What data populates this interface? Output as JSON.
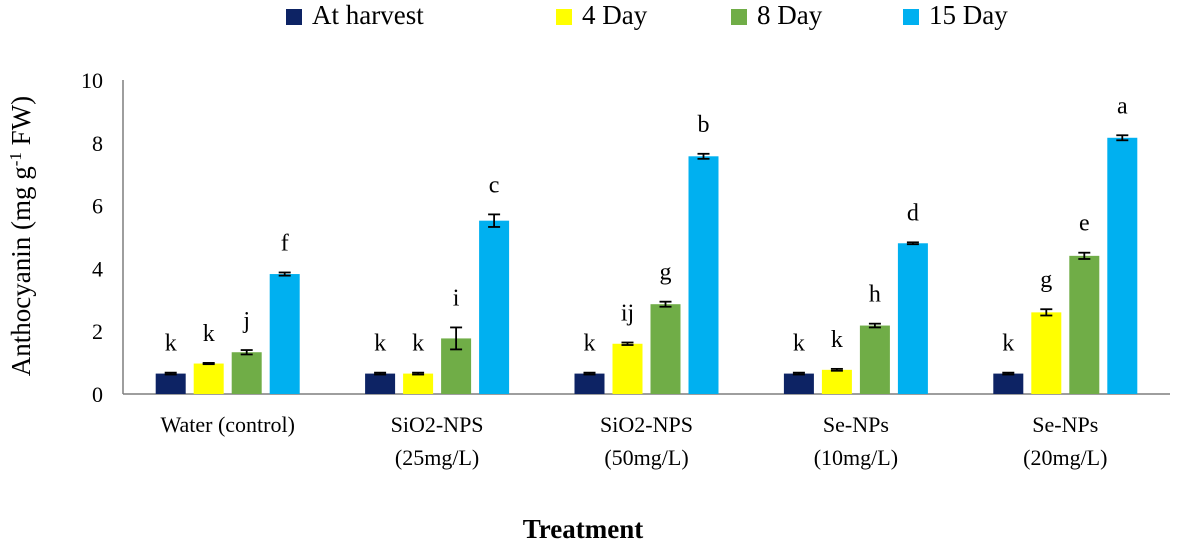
{
  "chart_data": {
    "type": "bar",
    "title": "",
    "ylabel": {
      "main": "Anthocyanin (mg g",
      "sup": "-1",
      "tail": " FW)"
    },
    "xlabel": "Treatment",
    "ylim": [
      0,
      10
    ],
    "yticks": [
      "0",
      "2",
      "4",
      "6",
      "8",
      "10"
    ],
    "grid": false,
    "legend_position": "top",
    "categories": [
      [
        "Water (control)"
      ],
      [
        "SiO2-NPS",
        "(25mg/L)"
      ],
      [
        "SiO2-NPS",
        "(50mg/L)"
      ],
      [
        "Se-NPs",
        "(10mg/L)"
      ],
      [
        "Se-NPs",
        "(20mg/L)"
      ]
    ],
    "series": [
      {
        "name": "At harvest",
        "color": "#0d2364",
        "values": [
          0.65,
          0.65,
          0.65,
          0.65,
          0.65
        ],
        "errors": [
          0.03,
          0.03,
          0.03,
          0.03,
          0.03
        ],
        "labels": [
          "k",
          "k",
          "k",
          "k",
          "k"
        ]
      },
      {
        "name": "4 Day",
        "color": "#ffff00",
        "values": [
          0.97,
          0.65,
          1.6,
          0.77,
          2.6
        ],
        "errors": [
          0.02,
          0.03,
          0.04,
          0.03,
          0.1
        ],
        "labels": [
          "k",
          "k",
          "ij",
          "k",
          "g"
        ]
      },
      {
        "name": "8 Day",
        "color": "#70ad47",
        "values": [
          1.33,
          1.77,
          2.86,
          2.18,
          4.4
        ],
        "errors": [
          0.07,
          0.35,
          0.08,
          0.06,
          0.1
        ],
        "labels": [
          "j",
          "i",
          "g",
          "h",
          "e"
        ]
      },
      {
        "name": "15 Day",
        "color": "#00b0f0",
        "values": [
          3.82,
          5.52,
          7.57,
          4.8,
          8.16
        ],
        "errors": [
          0.05,
          0.2,
          0.08,
          0.03,
          0.08
        ],
        "labels": [
          "f",
          "c",
          "b",
          "d",
          "a"
        ]
      }
    ]
  }
}
